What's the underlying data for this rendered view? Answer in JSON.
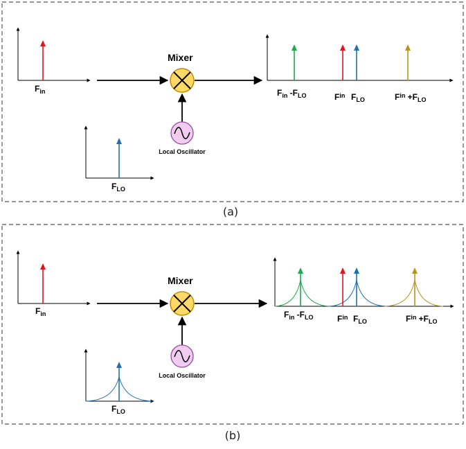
{
  "panel_a": {
    "caption": "(a)",
    "mixer_label": "Mixer",
    "oscillator_label": "Local Oscillator",
    "input_label": {
      "main": "F",
      "sub": "in"
    },
    "lo_label": {
      "main": "F",
      "sub": "LO"
    },
    "output_labels": {
      "diff": {
        "a": "F",
        "a_sub": "in",
        "op": " -F",
        "b_sub": "LO"
      },
      "fin": {
        "a": "F",
        "a_sub": "in"
      },
      "flo": {
        "a": "F",
        "a_sub": "LO"
      },
      "sum": {
        "a": "F",
        "a_sub": "in",
        "op": " +F",
        "b_sub": "LO"
      }
    }
  },
  "panel_b": {
    "caption": "(b)",
    "mixer_label": "Mixer",
    "oscillator_label": "Local Oscillator",
    "input_label": {
      "main": "F",
      "sub": "in"
    },
    "lo_label": {
      "main": "F",
      "sub": "LO"
    },
    "output_labels": {
      "diff": {
        "a": "F",
        "a_sub": "in",
        "op": " -F",
        "b_sub": "LO"
      },
      "fin": {
        "a": "F",
        "a_sub": "in"
      },
      "flo": {
        "a": "F",
        "a_sub": "LO"
      },
      "sum": {
        "a": "F",
        "a_sub": "in",
        "op": " +F",
        "b_sub": "LO"
      }
    }
  },
  "colors": {
    "fin": "#e0141e",
    "flo": "#1f6fb5",
    "diff": "#1fa84a",
    "sum": "#b8931c",
    "mixer_fill": "#ffd966",
    "mixer_stroke": "#c38a00",
    "osc_fill": "#f0ccf0",
    "osc_stroke": "#9a4aa0"
  }
}
